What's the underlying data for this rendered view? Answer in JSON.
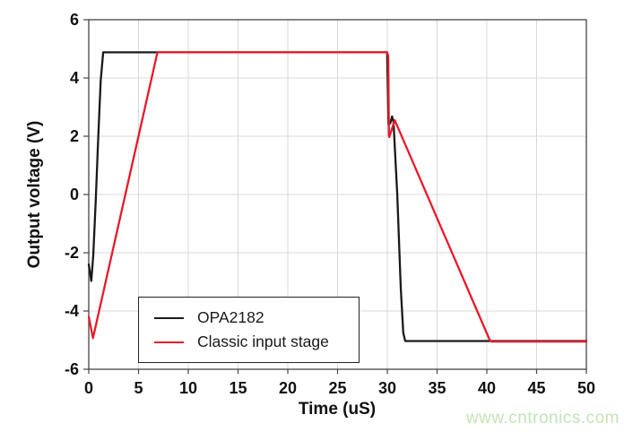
{
  "chart_data": {
    "type": "line",
    "title": "",
    "xlabel": "Time (uS)",
    "ylabel": "Output voltage (V)",
    "xlim": [
      0,
      50
    ],
    "ylim": [
      -6,
      6
    ],
    "x_ticks": [
      0,
      5,
      10,
      15,
      20,
      25,
      30,
      35,
      40,
      45,
      50
    ],
    "y_ticks": [
      -6,
      -4,
      -2,
      0,
      2,
      4,
      6
    ],
    "grid": true,
    "legend_position": "lower-left",
    "frame_color": "#444444",
    "grid_color": "#d9d9d9",
    "series": [
      {
        "name": "OPA2182",
        "color": "#1a1a1a",
        "points": [
          [
            0,
            -2.4
          ],
          [
            0.25,
            -2.97
          ],
          [
            0.45,
            -2.1
          ],
          [
            0.7,
            -0.2
          ],
          [
            0.95,
            1.9
          ],
          [
            1.2,
            3.9
          ],
          [
            1.45,
            4.88
          ],
          [
            29.98,
            4.88
          ],
          [
            30.12,
            2.4
          ],
          [
            30.3,
            2.45
          ],
          [
            30.48,
            2.68
          ],
          [
            30.62,
            2.5
          ],
          [
            31.0,
            0.0
          ],
          [
            31.35,
            -3.2
          ],
          [
            31.6,
            -4.75
          ],
          [
            31.8,
            -5.03
          ],
          [
            50,
            -5.03
          ]
        ]
      },
      {
        "name": "Classic input stage",
        "color": "#e8192b",
        "points": [
          [
            0,
            -4.2
          ],
          [
            0.42,
            -4.93
          ],
          [
            6.9,
            4.88
          ],
          [
            29.98,
            4.88
          ],
          [
            30.1,
            4.75
          ],
          [
            30.16,
            2.05
          ],
          [
            30.2,
            1.97
          ],
          [
            30.75,
            2.55
          ],
          [
            40.3,
            -5.0
          ],
          [
            40.45,
            -5.05
          ],
          [
            50,
            -5.05
          ]
        ]
      }
    ]
  },
  "watermark": {
    "text": "www.cntronics.com",
    "color": "#c2e5b6"
  }
}
